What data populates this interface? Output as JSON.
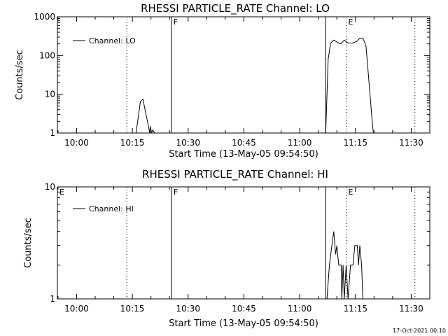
{
  "chart_data": [
    {
      "type": "line",
      "title": "RHESSI PARTICLE_RATE Channel: LO",
      "xlabel": "Start Time (13-May-05 09:54:50)",
      "ylabel": "Counts/sec",
      "yscale": "log",
      "ylim": [
        1,
        1000
      ],
      "yticks": [
        "1",
        "10",
        "100",
        "1000"
      ],
      "xlim": [
        "09:54:50",
        "11:35:00"
      ],
      "xticks": [
        "10:00",
        "10:15",
        "10:30",
        "10:45",
        "11:00",
        "11:15",
        "11:30"
      ],
      "legend": {
        "position": "top-left",
        "label": "Channel: LO"
      },
      "markers": [
        {
          "label": "",
          "time": "10:13:30",
          "style": "dotted"
        },
        {
          "label": "F",
          "time": "10:25:30",
          "style": "solid"
        },
        {
          "label": "",
          "time": "11:07:00",
          "style": "solid"
        },
        {
          "label": "E",
          "time": "11:12:30",
          "style": "dotted"
        },
        {
          "label": "",
          "time": "11:31:00",
          "style": "dotted"
        }
      ],
      "series": [
        {
          "name": "Channel: LO",
          "points": [
            [
              "10:16:00",
              1
            ],
            [
              "10:16:40",
              3
            ],
            [
              "10:17:10",
              6.5
            ],
            [
              "10:17:50",
              7.5
            ],
            [
              "10:18:40",
              3
            ],
            [
              "10:19:10",
              1.8
            ],
            [
              "10:19:40",
              1
            ],
            [
              "10:19:50",
              1.5
            ],
            [
              "10:20:10",
              1
            ],
            [
              "10:20:30",
              1.2
            ],
            [
              "10:21:00",
              1
            ],
            [
              "11:07:00",
              1
            ],
            [
              "11:07:40",
              80
            ],
            [
              "11:08:20",
              210
            ],
            [
              "11:09:10",
              250
            ],
            [
              "11:10:10",
              220
            ],
            [
              "11:11:00",
              200
            ],
            [
              "11:12:00",
              250
            ],
            [
              "11:13:00",
              210
            ],
            [
              "11:14:10",
              210
            ],
            [
              "11:15:20",
              230
            ],
            [
              "11:16:10",
              280
            ],
            [
              "11:17:00",
              280
            ],
            [
              "11:17:50",
              180
            ],
            [
              "11:18:30",
              30
            ],
            [
              "11:19:00",
              8
            ],
            [
              "11:19:30",
              2
            ],
            [
              "11:19:50",
              1
            ]
          ]
        }
      ]
    },
    {
      "type": "line",
      "title": "RHESSI PARTICLE_RATE Channel: HI",
      "xlabel": "Start Time (13-May-05 09:54:50)",
      "ylabel": "Counts/sec",
      "yscale": "log",
      "ylim": [
        1,
        10
      ],
      "yticks": [
        "1",
        "10"
      ],
      "xlim": [
        "09:54:50",
        "11:35:00"
      ],
      "xticks": [
        "10:00",
        "10:15",
        "10:30",
        "10:45",
        "11:00",
        "11:15",
        "11:30"
      ],
      "legend": {
        "position": "top-left",
        "label": "Channel: HI"
      },
      "markers": [
        {
          "label": "E",
          "time": "09:54:50",
          "style": "none"
        },
        {
          "label": "",
          "time": "10:13:30",
          "style": "dotted"
        },
        {
          "label": "F",
          "time": "10:25:30",
          "style": "solid"
        },
        {
          "label": "",
          "time": "11:07:00",
          "style": "solid"
        },
        {
          "label": "E",
          "time": "11:12:30",
          "style": "dotted"
        },
        {
          "label": "",
          "time": "11:31:00",
          "style": "dotted"
        }
      ],
      "series": [
        {
          "name": "Channel: HI",
          "points": [
            [
              "11:07:20",
              1
            ],
            [
              "11:08:00",
              2
            ],
            [
              "11:08:40",
              3
            ],
            [
              "11:09:10",
              4
            ],
            [
              "11:09:40",
              2.5
            ],
            [
              "11:10:00",
              3
            ],
            [
              "11:10:30",
              2
            ],
            [
              "11:11:10",
              2
            ],
            [
              "11:11:20",
              1
            ],
            [
              "11:11:40",
              2
            ],
            [
              "11:12:00",
              1
            ],
            [
              "11:12:30",
              2
            ],
            [
              "11:13:00",
              1
            ],
            [
              "11:13:40",
              2
            ],
            [
              "11:14:20",
              2
            ],
            [
              "11:14:50",
              3
            ],
            [
              "11:15:30",
              3
            ],
            [
              "11:15:50",
              2
            ],
            [
              "11:16:10",
              3
            ],
            [
              "11:16:40",
              2
            ],
            [
              "11:17:00",
              1
            ]
          ]
        }
      ]
    }
  ],
  "footer": {
    "timestamp": "17-Oct-2021 00:10"
  }
}
